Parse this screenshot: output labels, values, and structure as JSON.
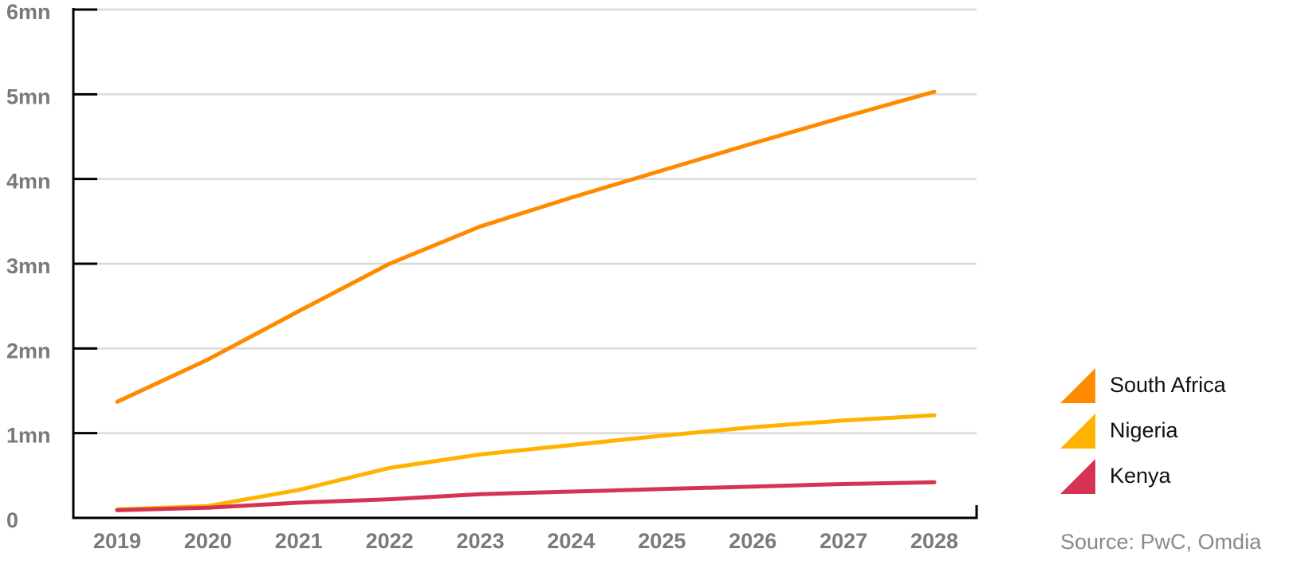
{
  "chart_data": {
    "type": "line",
    "x": [
      "2019",
      "2020",
      "2021",
      "2022",
      "2023",
      "2024",
      "2025",
      "2026",
      "2027",
      "2028"
    ],
    "series": [
      {
        "name": "South Africa",
        "color": "#ff8a00",
        "values": [
          1.37,
          1.87,
          2.44,
          3.0,
          3.44,
          3.78,
          4.1,
          4.42,
          4.73,
          5.03
        ]
      },
      {
        "name": "Nigeria",
        "color": "#ffb300",
        "values": [
          0.1,
          0.14,
          0.33,
          0.59,
          0.75,
          0.86,
          0.97,
          1.07,
          1.15,
          1.21
        ]
      },
      {
        "name": "Kenya",
        "color": "#d63353",
        "values": [
          0.09,
          0.12,
          0.18,
          0.22,
          0.28,
          0.31,
          0.34,
          0.37,
          0.4,
          0.42
        ]
      }
    ],
    "yticks": [
      "0",
      "1mn",
      "2mn",
      "3mn",
      "4mn",
      "5mn",
      "6mn"
    ],
    "ylim": [
      0,
      6
    ],
    "grid": true,
    "legend_position": "right"
  },
  "source": "Source: PwC, Omdia"
}
